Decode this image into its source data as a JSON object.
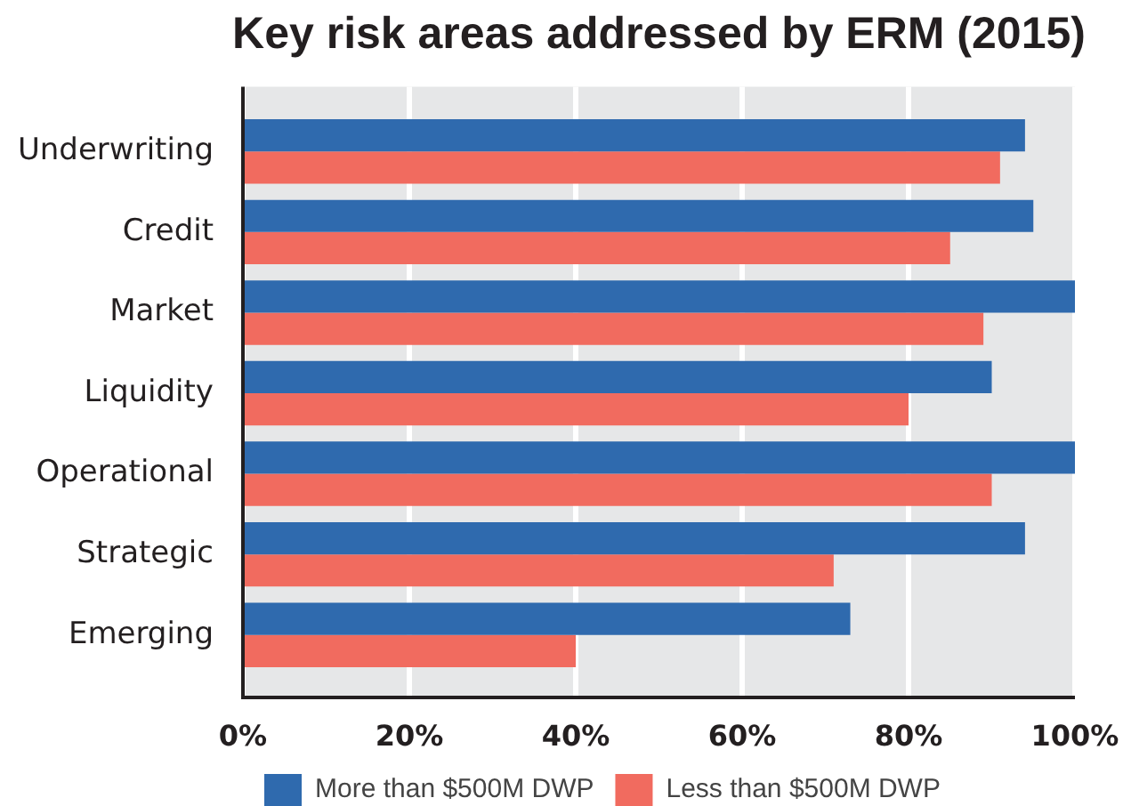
{
  "chart_data": {
    "type": "bar",
    "orientation": "horizontal",
    "title": "Key risk areas addressed by ERM (2015)",
    "categories": [
      "Underwriting",
      "Credit",
      "Market",
      "Liquidity",
      "Operational",
      "Strategic",
      "Emerging"
    ],
    "series": [
      {
        "name": "More than $500M DWP",
        "color": "#2f6aae",
        "values": [
          94,
          95,
          100,
          90,
          100,
          94,
          73
        ]
      },
      {
        "name": "Less than $500M DWP",
        "color": "#f16b5f",
        "values": [
          91,
          85,
          89,
          80,
          90,
          71,
          40
        ]
      }
    ],
    "xlim": [
      0,
      100
    ],
    "xticks": [
      {
        "value": 0,
        "label": "0%"
      },
      {
        "value": 20,
        "label": "20%"
      },
      {
        "value": 40,
        "label": "40%"
      },
      {
        "value": 60,
        "label": "60%"
      },
      {
        "value": 80,
        "label": "80%"
      },
      {
        "value": 100,
        "label": "100%"
      }
    ],
    "grid": "x",
    "legend": "bottom left"
  }
}
